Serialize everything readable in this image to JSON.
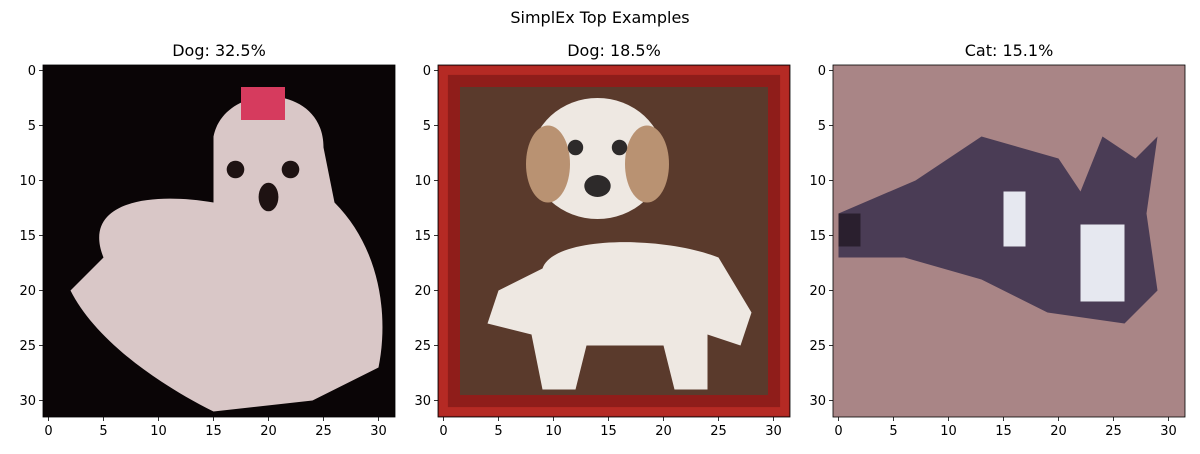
{
  "figure": {
    "title": "SimplEx Top Examples"
  },
  "chart_data": [
    {
      "type": "image",
      "title": "Dog: 32.5%",
      "label": "Dog",
      "weight_percent": 32.5,
      "image_size": [
        32,
        32
      ],
      "x_ticks": [
        "0",
        "5",
        "10",
        "15",
        "20",
        "25",
        "30"
      ],
      "y_ticks": [
        "0",
        "5",
        "10",
        "15",
        "20",
        "25",
        "30"
      ],
      "xlim": [
        -0.5,
        31.5
      ],
      "ylim": [
        31.5,
        -0.5
      ],
      "colors": {
        "background": "#0a0506",
        "subject": "#d9c7c7",
        "accent": "#d63b5e",
        "feature": "#1e1212"
      }
    },
    {
      "type": "image",
      "title": "Dog: 18.5%",
      "label": "Dog",
      "weight_percent": 18.5,
      "image_size": [
        32,
        32
      ],
      "x_ticks": [
        "0",
        "5",
        "10",
        "15",
        "20",
        "25",
        "30"
      ],
      "y_ticks": [
        "0",
        "5",
        "10",
        "15",
        "20",
        "25",
        "30"
      ],
      "xlim": [
        -0.5,
        31.5
      ],
      "ylim": [
        31.5,
        -0.5
      ],
      "colors": {
        "frame": "#8f1d1a",
        "frame_light": "#b52a24",
        "background": "#5a3a2c",
        "subject": "#eee8e2",
        "accent": "#b99272",
        "feature": "#2d2a2a"
      }
    },
    {
      "type": "image",
      "title": "Cat: 15.1%",
      "label": "Cat",
      "weight_percent": 15.1,
      "image_size": [
        32,
        32
      ],
      "x_ticks": [
        "0",
        "5",
        "10",
        "15",
        "20",
        "25",
        "30"
      ],
      "y_ticks": [
        "0",
        "5",
        "10",
        "15",
        "20",
        "25",
        "30"
      ],
      "xlim": [
        -0.5,
        31.5
      ],
      "ylim": [
        31.5,
        -0.5
      ],
      "colors": {
        "background": "#a98586",
        "subject": "#4a3c55",
        "accent": "#e6e8f0",
        "feature": "#2a1f2e"
      }
    }
  ]
}
